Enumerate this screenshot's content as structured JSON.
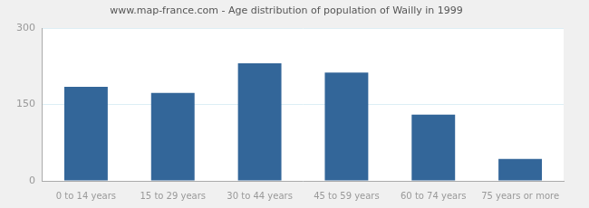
{
  "chart_data": {
    "type": "bar",
    "title": "www.map-france.com - Age distribution of population of Wailly in 1999",
    "categories": [
      "0 to 14 years",
      "15 to 29 years",
      "30 to 44 years",
      "45 to 59 years",
      "60 to 74 years",
      "75 years or more"
    ],
    "values": [
      185,
      173,
      231,
      213,
      130,
      43
    ],
    "color": "#336699",
    "ylim": [
      0,
      300
    ],
    "yticks": [
      0,
      150,
      300
    ],
    "grid": true
  }
}
